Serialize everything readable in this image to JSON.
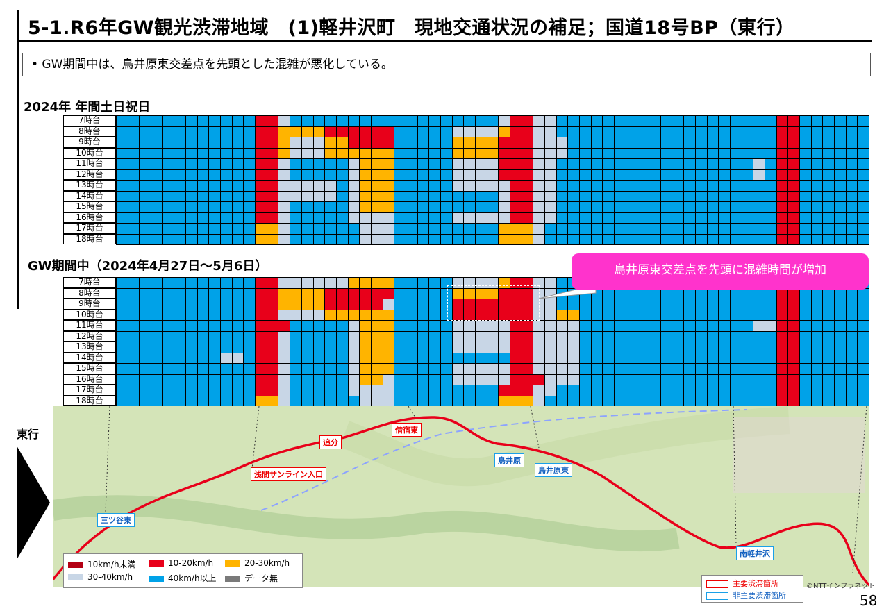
{
  "title": "5-1.R6年GW観光渋滞地域　(1)軽井沢町　現地交通状況の補足；国道18号BP（東行）",
  "bullet": "•  GW期間中は、鳥井原東交差点を先頭とした混雑が悪化している。",
  "section1_title": "2024年 年間土日祝日",
  "section2_title": "GW期間中（2024年4月27日～5月6日）",
  "callout": "鳥井原東交差点を先頭に混雑時間が増加",
  "direction_label": "東行",
  "page_number": "58",
  "copyright": "©NTTインフラネット",
  "hours": [
    "7時台",
    "8時台",
    "9時台",
    "10時台",
    "11時台",
    "12時台",
    "13時台",
    "14時台",
    "15時台",
    "16時台",
    "17時台",
    "18時台"
  ],
  "colors": {
    "red": "#e8001a",
    "orange": "#ffb400",
    "light": "#c8d6e6",
    "blue": "#00a2e8",
    "darkred": "#b40014",
    "gray": "#7a7a7a"
  },
  "legend": {
    "items": [
      {
        "label": "10km/h未満",
        "color": "darkred"
      },
      {
        "label": "10-20km/h",
        "color": "red"
      },
      {
        "label": "20-30km/h",
        "color": "orange"
      },
      {
        "label": "30-40km/h",
        "color": "light"
      },
      {
        "label": "40km/h以上",
        "color": "blue"
      },
      {
        "label": "データ無",
        "color": "gray"
      }
    ]
  },
  "legend2": {
    "main": "主要渋滞箇所",
    "sub": "非主要渋滞箇所"
  },
  "map_labels": {
    "sanmitsuya": "三ツ谷東",
    "asama": "浅間サンライン入口",
    "oiwake": "追分",
    "shinano": "借宿東",
    "torii": "鳥井原",
    "torii_east": "鳥井原東",
    "minami": "南軽井沢"
  },
  "grid_year": [
    "BBBBBBBBBBBBRRLBBBBBBBBBBBBBBBBBBLRRLLBBBBBBBBBBBBBBBBBBBRRBBBBBB",
    "BBBBBBBBBBBBRROOOORRRRRRBBBBBLLLLORRLLBBBBBBBBBBBBBBBBBBBRRBBBBBB",
    "BBBBBBBBBBBBRROLLLOORRRRBBBBBOOOORRRLLLBBBBBBBBBBBBBBBBBBRRBBBBBB",
    "BBBBBBBBBBBBRROLLLOOOOOOBBBBBOOOORRRLLLBBBBBBBBBBBBBBBBBBRRBBBBBB",
    "BBBBBBBBBBBBRRLBBBBBLOOOBBBBBLLLLRRRLLBBBBBBBBBBBBBBBBBLBRRBBBBBB",
    "BBBBBBBBBBBBRRLBBBBBLOOOBBBBBLLLLRRRLLBBBBBBBBBBBBBBBBBLBRRBBBBBB",
    "BBBBBBBBBBBBRRLLLLLBLOOOBBBBBLLLLLRRLLBBBBBBBBBBBBBBBBBBBRRBBBBBB",
    "BBBBBBBBBBBBRRLLLLLBLOOOBBBBBBBBBLRRLLBBBBBBBBBBBBBBBBBBBRRBBBBBB",
    "BBBBBBBBBBBBRRLBBBBBLOOOBBBBBBBBBLRRLLBBBBBBBBBBBBBBBBBBBRRBBBBBB",
    "BBBBBBBBBBBBRRLBBBBBLLLLBBBBBLLLLLRRLLBBBBBBBBBBBBBBBBBBBRRBBBBBB",
    "BBBBBBBBBBBBOOLBBBBBBLLLBBBBBBBBBOOOLBBBBBBBBBBBBBBBBBBBBRRBBBBBB",
    "BBBBBBBBBBBBOOLBBBBBBLLLBBBBBBBBBOOOLBBBBBBBBBBBBBBBBBBBBRRBBBBBB"
  ],
  "grid_gw": [
    "BBBBBBBBBBBBRRLLLLLLOOOOBBBBBLLLLORRLLBBBBBBBBBBBBBBBBBBBRRBBBBBB",
    "BBBBBBBBBBBBRROOOORRRRRRBBBBBOOOORRRLLBBBBBBBBBBBBBBBBBBBRRBBBBBB",
    "BBBBBBBBBBBBRROOOORRRRRLBBBBBRRRRRRRLLBBBBBBBBBBBBBBBBBBBRRBBBBBB",
    "BBBBBBBBBBBBRRLLLLOOOOOOBBBBBRRRRRRRLLOOBBBBBBBBBBBBBBBBBRRBBBBBB",
    "BBBBBBBBBBBBRRRBBBBBLOOOBBBBBLLLLLRRLLLLBBBBBBBBBBBBBBBLLRRBBBBBB",
    "BBBBBBBBBBBBRRLBBBBBLOOOBBBBBLLLLLRRLLLLBBBBBBBBBBBBBBBBBRRBBBBBB",
    "BBBBBBBBBBBBRRLBBBBBLOOOBBBBBLLLLLRRLLLLBBBBBBBBBBBBBBBBBRRBBBBBB",
    "BBBBBBBBBLLBRRLBBBBBLOOOBBBBBBBBBBRRLLLLBBBBBBBBBBBBBBBBBRRBBBBBB",
    "BBBBBBBBBBBBRRLBBBBBLOOOBBBBBLLLLLRRLLLLBBBBBBBBBBBBBBBBBRRBBBBBB",
    "BBBBBBBBBBBBRRLBBBBBLOOLBBBBBLLLLLRRRLLLBBBBBBBBBBBBBBBBBRRBBBBBB",
    "BBBBBBBBBBBBRRLBBBBBLLLLBBBBBBBBBRRRLLBBBBBBBBBBBBBBBBBBBRRBBBBBB",
    "BBBBBBBBBBBBOOLBBBBBBLLLBBBBBBBBBOOOLBBBBBBBBBBBBBBBBBBBBRRBBBBBB"
  ]
}
